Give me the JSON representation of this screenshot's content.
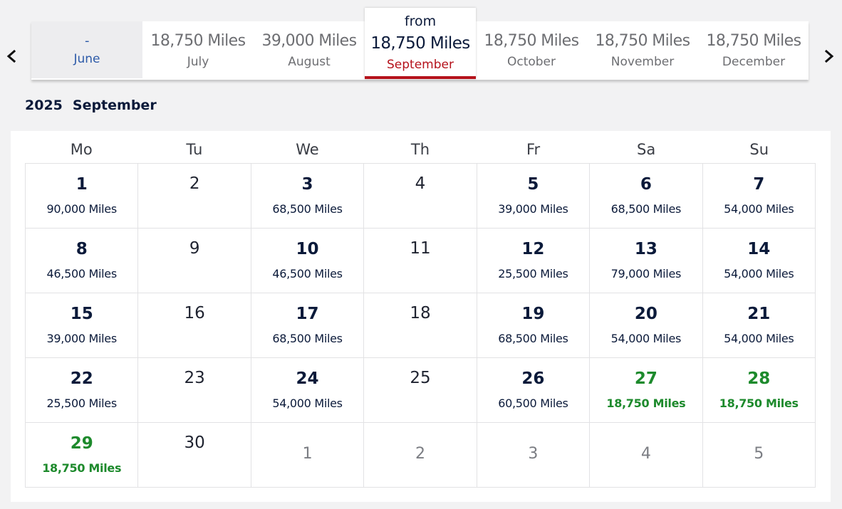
{
  "carousel": {
    "tabs": [
      {
        "price": "-",
        "month": "June",
        "state": "unavailable"
      },
      {
        "price": "18,750 Miles",
        "month": "July",
        "state": "normal"
      },
      {
        "price": "39,000 Miles",
        "month": "August",
        "state": "normal"
      },
      {
        "from": "from",
        "price": "18,750 Miles",
        "month": "September",
        "state": "active"
      },
      {
        "price": "18,750 Miles",
        "month": "October",
        "state": "normal"
      },
      {
        "price": "18,750 Miles",
        "month": "November",
        "state": "normal"
      },
      {
        "price": "18,750 Miles",
        "month": "December",
        "state": "normal"
      }
    ]
  },
  "calendar": {
    "year": "2025",
    "month": "September",
    "weekdays": [
      "Mo",
      "Tu",
      "We",
      "Th",
      "Fr",
      "Sa",
      "Su"
    ],
    "days": [
      {
        "day": "1",
        "miles": "90,000 Miles",
        "type": "priced"
      },
      {
        "day": "2",
        "miles": "",
        "type": "nodata"
      },
      {
        "day": "3",
        "miles": "68,500 Miles",
        "type": "priced"
      },
      {
        "day": "4",
        "miles": "",
        "type": "nodata"
      },
      {
        "day": "5",
        "miles": "39,000 Miles",
        "type": "priced"
      },
      {
        "day": "6",
        "miles": "68,500 Miles",
        "type": "priced"
      },
      {
        "day": "7",
        "miles": "54,000 Miles",
        "type": "priced"
      },
      {
        "day": "8",
        "miles": "46,500 Miles",
        "type": "priced"
      },
      {
        "day": "9",
        "miles": "",
        "type": "nodata"
      },
      {
        "day": "10",
        "miles": "46,500 Miles",
        "type": "priced"
      },
      {
        "day": "11",
        "miles": "",
        "type": "nodata"
      },
      {
        "day": "12",
        "miles": "25,500 Miles",
        "type": "priced"
      },
      {
        "day": "13",
        "miles": "79,000 Miles",
        "type": "priced"
      },
      {
        "day": "14",
        "miles": "54,000 Miles",
        "type": "priced"
      },
      {
        "day": "15",
        "miles": "39,000 Miles",
        "type": "priced"
      },
      {
        "day": "16",
        "miles": "",
        "type": "nodata"
      },
      {
        "day": "17",
        "miles": "68,500 Miles",
        "type": "priced"
      },
      {
        "day": "18",
        "miles": "",
        "type": "nodata"
      },
      {
        "day": "19",
        "miles": "68,500 Miles",
        "type": "priced"
      },
      {
        "day": "20",
        "miles": "54,000 Miles",
        "type": "priced"
      },
      {
        "day": "21",
        "miles": "54,000 Miles",
        "type": "priced"
      },
      {
        "day": "22",
        "miles": "25,500 Miles",
        "type": "priced"
      },
      {
        "day": "23",
        "miles": "",
        "type": "nodata"
      },
      {
        "day": "24",
        "miles": "54,000 Miles",
        "type": "priced"
      },
      {
        "day": "25",
        "miles": "",
        "type": "nodata"
      },
      {
        "day": "26",
        "miles": "60,500 Miles",
        "type": "priced"
      },
      {
        "day": "27",
        "miles": "18,750 Miles",
        "type": "lowest"
      },
      {
        "day": "28",
        "miles": "18,750 Miles",
        "type": "lowest"
      },
      {
        "day": "29",
        "miles": "18,750 Miles",
        "type": "lowest"
      },
      {
        "day": "30",
        "miles": "",
        "type": "nodata"
      },
      {
        "day": "1",
        "miles": "",
        "type": "other"
      },
      {
        "day": "2",
        "miles": "",
        "type": "other"
      },
      {
        "day": "3",
        "miles": "",
        "type": "other"
      },
      {
        "day": "4",
        "miles": "",
        "type": "other"
      },
      {
        "day": "5",
        "miles": "",
        "type": "other"
      }
    ]
  },
  "colors": {
    "navy": "#0b1a3a",
    "accent_red": "#b5121b",
    "lowest_green": "#1d8a2c",
    "unavailable_blue": "#2d5aa8",
    "muted_gray": "#6d6e72"
  },
  "icons": {
    "prev": "chevron-left-icon",
    "next": "chevron-right-icon"
  }
}
